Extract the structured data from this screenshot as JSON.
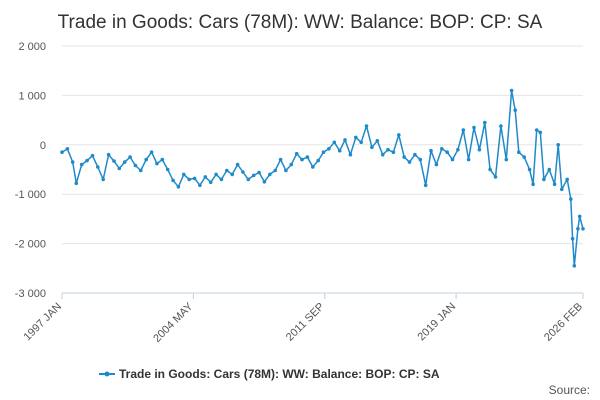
{
  "chart_data": {
    "type": "line",
    "title": "Trade in Goods: Cars (78M): WW: Balance: BOP: CP: SA",
    "xlabel": "",
    "ylabel": "",
    "ylim": [
      -3000,
      2000
    ],
    "y_ticks": [
      2000,
      1000,
      0,
      -1000,
      -2000,
      -3000
    ],
    "y_tick_labels": [
      "2 000",
      "1 000",
      "0",
      "-1 000",
      "-2 000",
      "-3 000"
    ],
    "xlim": [
      1997.0,
      2026.0833
    ],
    "x_ticks": [
      1997.0,
      2004.3333,
      2011.6667,
      2019.0,
      2026.0833
    ],
    "x_tick_labels": [
      "1997 JAN",
      "2004 MAY",
      "2011 SEP",
      "2019 JAN",
      "2026 FEB"
    ],
    "grid": "horizontal",
    "legend": "bottom-center",
    "series": [
      {
        "name": "Trade in Goods: Cars (78M): WW: Balance: BOP: CP: SA",
        "color": "#1f8ac9",
        "points": [
          [
            1997.0,
            -150
          ],
          [
            1997.3,
            -80
          ],
          [
            1997.6,
            -350
          ],
          [
            1997.8,
            -780
          ],
          [
            1998.1,
            -400
          ],
          [
            1998.4,
            -320
          ],
          [
            1998.7,
            -220
          ],
          [
            1999.0,
            -450
          ],
          [
            1999.3,
            -700
          ],
          [
            1999.6,
            -200
          ],
          [
            1999.9,
            -330
          ],
          [
            2000.2,
            -480
          ],
          [
            2000.5,
            -350
          ],
          [
            2000.8,
            -250
          ],
          [
            2001.1,
            -420
          ],
          [
            2001.4,
            -520
          ],
          [
            2001.7,
            -300
          ],
          [
            2002.0,
            -150
          ],
          [
            2002.3,
            -380
          ],
          [
            2002.6,
            -300
          ],
          [
            2002.9,
            -500
          ],
          [
            2003.2,
            -720
          ],
          [
            2003.5,
            -850
          ],
          [
            2003.8,
            -600
          ],
          [
            2004.1,
            -700
          ],
          [
            2004.4,
            -680
          ],
          [
            2004.7,
            -820
          ],
          [
            2005.0,
            -650
          ],
          [
            2005.3,
            -760
          ],
          [
            2005.6,
            -600
          ],
          [
            2005.9,
            -700
          ],
          [
            2006.2,
            -520
          ],
          [
            2006.5,
            -600
          ],
          [
            2006.8,
            -400
          ],
          [
            2007.1,
            -550
          ],
          [
            2007.4,
            -700
          ],
          [
            2007.7,
            -620
          ],
          [
            2008.0,
            -560
          ],
          [
            2008.3,
            -750
          ],
          [
            2008.6,
            -600
          ],
          [
            2008.9,
            -520
          ],
          [
            2009.2,
            -300
          ],
          [
            2009.5,
            -520
          ],
          [
            2009.8,
            -400
          ],
          [
            2010.1,
            -180
          ],
          [
            2010.4,
            -300
          ],
          [
            2010.7,
            -250
          ],
          [
            2011.0,
            -450
          ],
          [
            2011.3,
            -320
          ],
          [
            2011.6,
            -150
          ],
          [
            2011.9,
            -80
          ],
          [
            2012.2,
            50
          ],
          [
            2012.5,
            -120
          ],
          [
            2012.8,
            100
          ],
          [
            2013.1,
            -200
          ],
          [
            2013.4,
            150
          ],
          [
            2013.7,
            50
          ],
          [
            2014.0,
            380
          ],
          [
            2014.3,
            -50
          ],
          [
            2014.6,
            80
          ],
          [
            2014.9,
            -200
          ],
          [
            2015.2,
            -100
          ],
          [
            2015.5,
            -150
          ],
          [
            2015.8,
            200
          ],
          [
            2016.1,
            -250
          ],
          [
            2016.4,
            -350
          ],
          [
            2016.7,
            -200
          ],
          [
            2017.0,
            -300
          ],
          [
            2017.3,
            -820
          ],
          [
            2017.6,
            -120
          ],
          [
            2017.9,
            -400
          ],
          [
            2018.2,
            -80
          ],
          [
            2018.5,
            -150
          ],
          [
            2018.8,
            -300
          ],
          [
            2019.1,
            -100
          ],
          [
            2019.4,
            300
          ],
          [
            2019.7,
            -300
          ],
          [
            2020.0,
            350
          ],
          [
            2020.3,
            -100
          ],
          [
            2020.6,
            450
          ],
          [
            2020.9,
            -500
          ],
          [
            2021.2,
            -650
          ],
          [
            2021.5,
            380
          ],
          [
            2021.8,
            -300
          ],
          [
            2022.1,
            1100
          ],
          [
            2022.3,
            700
          ],
          [
            2022.5,
            -150
          ],
          [
            2022.8,
            -250
          ],
          [
            2023.1,
            -500
          ],
          [
            2023.3,
            -800
          ],
          [
            2023.5,
            300
          ],
          [
            2023.7,
            250
          ],
          [
            2023.9,
            -700
          ],
          [
            2024.2,
            -500
          ],
          [
            2024.5,
            -800
          ],
          [
            2024.7,
            0
          ],
          [
            2024.9,
            -900
          ],
          [
            2025.2,
            -700
          ],
          [
            2025.4,
            -1100
          ],
          [
            2025.5,
            -1900
          ],
          [
            2025.6,
            -2450
          ],
          [
            2025.8,
            -1700
          ],
          [
            2025.9,
            -1450
          ],
          [
            2026.0833,
            -1700
          ]
        ]
      }
    ]
  },
  "source_label": "Source:"
}
